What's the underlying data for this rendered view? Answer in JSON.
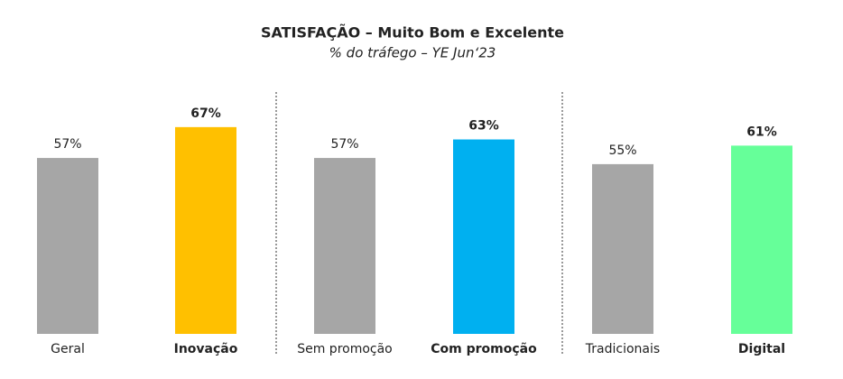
{
  "chart_data": {
    "type": "bar",
    "title": "SATISFAÇÃO – Muito Bom e Excelente",
    "subtitle": "% do tráfego – YE Jun‘23",
    "categories": [
      "Geral",
      "Inovação",
      "Sem promoção",
      "Com promoção",
      "Tradicionais",
      "Digital"
    ],
    "values": [
      57,
      67,
      57,
      63,
      55,
      61
    ],
    "value_labels": [
      "57%",
      "67%",
      "57%",
      "63%",
      "55%",
      "61%"
    ],
    "colors": [
      "#a6a6a6",
      "#ffc000",
      "#a6a6a6",
      "#00b0f0",
      "#a6a6a6",
      "#66ff99"
    ],
    "bold": [
      false,
      true,
      false,
      true,
      false,
      true
    ]
  }
}
